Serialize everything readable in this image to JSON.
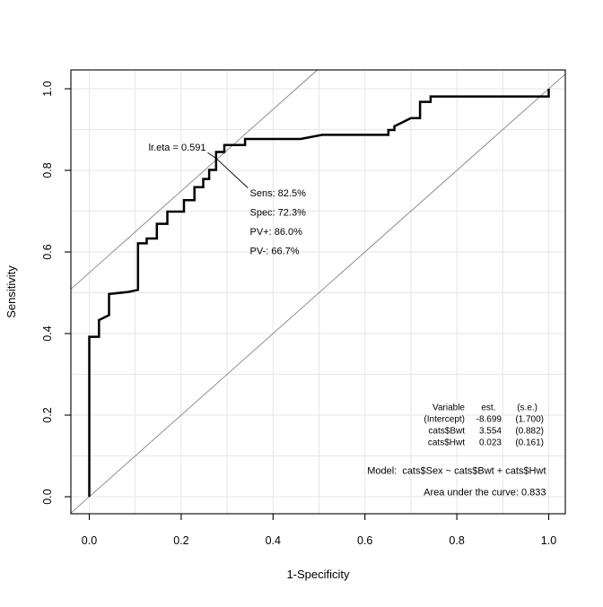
{
  "figure": {
    "background": "#ffffff",
    "axis_color": "#000000",
    "grid_color": "#e6e6e6",
    "reference_line_color": "#828282",
    "curve_color": "#000000"
  },
  "chart_data": {
    "type": "line",
    "subtype": "roc-curve-step",
    "title": "",
    "xlabel": "1-Specificity",
    "ylabel": "Sensitivity",
    "xlim": [
      0,
      1
    ],
    "ylim": [
      0,
      1
    ],
    "grid": {
      "show": true,
      "step": 0.1
    },
    "x_ticks": [
      "0.0",
      "0.2",
      "0.4",
      "0.6",
      "0.8",
      "1.0"
    ],
    "y_ticks": [
      "0.0",
      "0.2",
      "0.4",
      "0.6",
      "0.8",
      "1.0"
    ],
    "x_tick_values": [
      0,
      0.2,
      0.4,
      0.6,
      0.8,
      1.0
    ],
    "y_tick_values": [
      0,
      0.2,
      0.4,
      0.6,
      0.8,
      1.0
    ],
    "roc_points": [
      [
        0.0,
        0.0
      ],
      [
        0.0,
        0.392
      ],
      [
        0.021,
        0.392
      ],
      [
        0.021,
        0.433
      ],
      [
        0.043,
        0.445
      ],
      [
        0.043,
        0.497
      ],
      [
        0.085,
        0.502
      ],
      [
        0.106,
        0.507
      ],
      [
        0.106,
        0.621
      ],
      [
        0.125,
        0.621
      ],
      [
        0.125,
        0.633
      ],
      [
        0.147,
        0.633
      ],
      [
        0.147,
        0.669
      ],
      [
        0.17,
        0.669
      ],
      [
        0.17,
        0.699
      ],
      [
        0.206,
        0.699
      ],
      [
        0.206,
        0.727
      ],
      [
        0.229,
        0.727
      ],
      [
        0.229,
        0.759
      ],
      [
        0.248,
        0.759
      ],
      [
        0.248,
        0.779
      ],
      [
        0.261,
        0.779
      ],
      [
        0.261,
        0.801
      ],
      [
        0.276,
        0.801
      ],
      [
        0.276,
        0.845
      ],
      [
        0.294,
        0.845
      ],
      [
        0.294,
        0.862
      ],
      [
        0.339,
        0.862
      ],
      [
        0.339,
        0.877
      ],
      [
        0.46,
        0.877
      ],
      [
        0.507,
        0.887
      ],
      [
        0.651,
        0.887
      ],
      [
        0.651,
        0.899
      ],
      [
        0.664,
        0.899
      ],
      [
        0.664,
        0.908
      ],
      [
        0.7,
        0.928
      ],
      [
        0.72,
        0.928
      ],
      [
        0.72,
        0.968
      ],
      [
        0.743,
        0.968
      ],
      [
        0.743,
        0.981
      ],
      [
        1.0,
        0.981
      ],
      [
        1.0,
        1.0
      ]
    ],
    "reference_lines": [
      {
        "name": "chance-diagonal",
        "from": [
          -0.04,
          -0.04
        ],
        "to": [
          1.0362,
          1.0362
        ]
      },
      {
        "name": "optimal-cut-parallel",
        "from": [
          -0.04,
          0.509
        ],
        "to": [
          0.4965,
          1.0462
        ]
      }
    ],
    "annotations": {
      "cut_label": "lr.eta = 0.591",
      "cut_point": [
        0.277,
        0.825
      ],
      "stats": [
        "Sens: 82.5%",
        "Spec: 72.3%",
        "PV+: 86.0%",
        "PV-: 66.7%"
      ]
    },
    "coef_table": {
      "headers": [
        "Variable",
        "est.",
        "(s.e.)"
      ],
      "rows": [
        [
          "(Intercept)",
          "-8.699",
          "(1.700)"
        ],
        [
          "cats$Bwt",
          "3.554",
          "(0.882)"
        ],
        [
          "cats$Hwt",
          "0.023",
          "(0.161)"
        ]
      ]
    },
    "model_label": "Model:  cats$Sex ~ cats$Bwt + cats$Hwt",
    "auc_label": "Area under the curve: 0.833"
  }
}
